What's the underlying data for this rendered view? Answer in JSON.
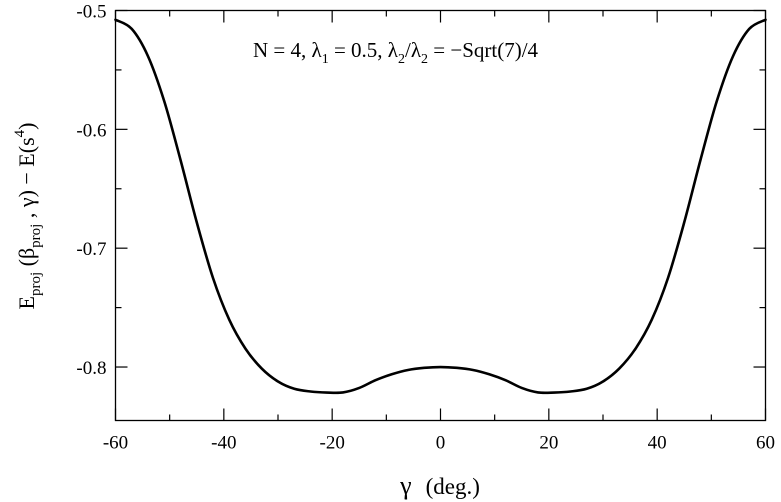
{
  "chart_data": {
    "type": "line",
    "title": "",
    "xlabel": "γ (deg.)",
    "ylabel": "E_proj(β_proj, γ) − E(s^4)",
    "xlabel_parts": {
      "symbol": "γ",
      "unit": "(deg.)"
    },
    "ylabel_parts": {
      "e": "E",
      "proj_sub": "proj",
      "open": " (",
      "beta": "β",
      "beta_sub": "proj",
      "comma": " , ",
      "gamma": "γ",
      "close": ") − E(s",
      "sup": "4",
      "end": ")"
    },
    "annotation": {
      "text": "N = 4, λ1 = 0.5, λ2/λ2 = −Sqrt(7)/4",
      "parts": {
        "n": "N = 4, ",
        "l1": "λ",
        "l1_sub": "1",
        "l1_val": " = 0.5, ",
        "l2a": "λ",
        "l2a_sub": "2",
        "slash": "/",
        "l2b": "λ",
        "l2b_sub": "2",
        "l2_val": " = −Sqrt(7)/4"
      }
    },
    "xlim": [
      -60,
      60
    ],
    "ylim": [
      -0.845,
      -0.5
    ],
    "x_ticks": [
      -60,
      -40,
      -20,
      0,
      20,
      40,
      60
    ],
    "x_tick_labels": [
      "-60",
      "-40",
      "-20",
      "0",
      "20",
      "40",
      "60"
    ],
    "y_ticks": [
      -0.8,
      -0.7,
      -0.6,
      -0.5
    ],
    "y_tick_labels": [
      "-0.8",
      "-0.7",
      "-0.6",
      "-0.5"
    ],
    "x_minor_step": 10,
    "y_minor_step": 0.05,
    "grid": false,
    "series": [
      {
        "x": [
          -60,
          -57,
          -54,
          -51,
          -48,
          -45,
          -42,
          -39,
          -36,
          -33,
          -30,
          -27,
          -24,
          -21,
          -18,
          -15,
          -12,
          -9,
          -6,
          -3,
          0,
          3,
          6,
          9,
          12,
          15,
          18,
          21,
          24,
          27,
          30,
          33,
          36,
          39,
          42,
          45,
          48,
          51,
          54,
          57,
          60
        ],
        "y": [
          -0.5078,
          -0.5155,
          -0.5385,
          -0.5764,
          -0.6257,
          -0.6782,
          -0.7251,
          -0.7602,
          -0.7846,
          -0.8013,
          -0.8122,
          -0.8183,
          -0.8206,
          -0.8215,
          -0.8214,
          -0.8176,
          -0.8111,
          -0.8061,
          -0.8025,
          -0.8007,
          -0.8,
          -0.8007,
          -0.8025,
          -0.8061,
          -0.8111,
          -0.8176,
          -0.8214,
          -0.8215,
          -0.8206,
          -0.8183,
          -0.8122,
          -0.8013,
          -0.7846,
          -0.7602,
          -0.7251,
          -0.6782,
          -0.6257,
          -0.5764,
          -0.5385,
          -0.5155,
          -0.5078
        ]
      }
    ]
  }
}
